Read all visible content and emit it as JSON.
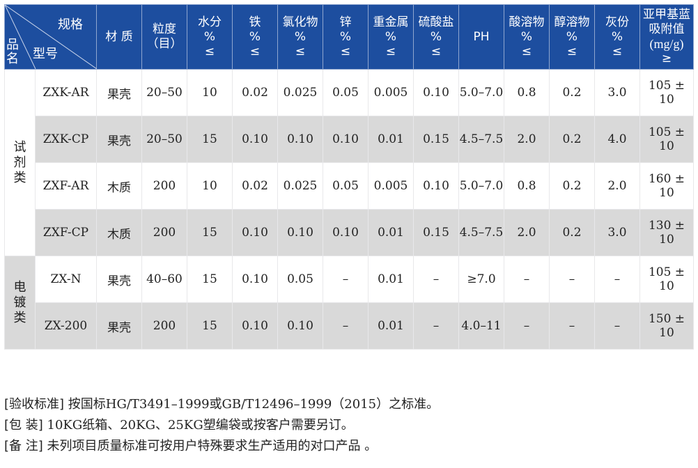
{
  "header": {
    "corner": {
      "spec": "规格",
      "model": "型号",
      "name": "品名"
    },
    "columns": [
      {
        "l1": "材 质",
        "l2": "",
        "l3": ""
      },
      {
        "l1": "粒度",
        "l2": "（目）",
        "l3": ""
      },
      {
        "l1": "水分",
        "l2": "%",
        "l3": "≤"
      },
      {
        "l1": "铁",
        "l2": "%",
        "l3": "≤"
      },
      {
        "l1": "氯化物",
        "l2": "%",
        "l3": "≤"
      },
      {
        "l1": "锌",
        "l2": "%",
        "l3": "≤"
      },
      {
        "l1": "重金属",
        "l2": "%",
        "l3": "≤"
      },
      {
        "l1": "硫酸盐",
        "l2": "%",
        "l3": "≤"
      },
      {
        "l1": "PH",
        "l2": "",
        "l3": ""
      },
      {
        "l1": "酸溶物",
        "l2": "%",
        "l3": "≤"
      },
      {
        "l1": "醇溶物",
        "l2": "%",
        "l3": "≤"
      },
      {
        "l1": "灰份",
        "l2": "%",
        "l3": "≤"
      },
      {
        "l1": "亚甲基蓝",
        "l2": "吸附值",
        "l3": "(mg/g)",
        "l4": "≥"
      }
    ]
  },
  "categories": [
    "试剂类",
    "电镀类"
  ],
  "rows": [
    [
      "ZXK-AR",
      "果壳",
      "20–50",
      "10",
      "0.02",
      "0.025",
      "0.05",
      "0.005",
      "0.10",
      "5.0–7.0",
      "0.8",
      "0.2",
      "3.0",
      "105 ± 10"
    ],
    [
      "ZXK-CP",
      "果壳",
      "20–50",
      "15",
      "0.10",
      "0.10",
      "0.10",
      "0.01",
      "0.15",
      "4.5–7.5",
      "2.0",
      "0.2",
      "4.0",
      "105 ± 10"
    ],
    [
      "ZXF-AR",
      "木质",
      "200",
      "10",
      "0.02",
      "0.025",
      "0.05",
      "0.005",
      "0.10",
      "5.0–7.0",
      "0.8",
      "0.2",
      "2.0",
      "160 ± 10"
    ],
    [
      "ZXF-CP",
      "木质",
      "200",
      "15",
      "0.10",
      "0.10",
      "0.10",
      "0.01",
      "0.15",
      "4.5–7.5",
      "2.0",
      "0.2",
      "3.0",
      "130 ± 10"
    ],
    [
      "ZX-N",
      "果壳",
      "40–60",
      "15",
      "0.10",
      "0.05",
      "–",
      "0.01",
      "–",
      "≥7.0",
      "–",
      "–",
      "–",
      "105 ± 10"
    ],
    [
      "ZX-200",
      "果壳",
      "200",
      "15",
      "0.10",
      "0.10",
      "–",
      "0.01",
      "–",
      "4.0–11",
      "–",
      "–",
      "–",
      "150 ± 10"
    ]
  ],
  "notes": [
    {
      "key": "[验收标准]",
      "text": " 按国标HG/T3491–1999或GB/T12496–1999（2015）之标准。"
    },
    {
      "key": "[包 装]",
      "text": " 10KG纸箱、20KG、25KG塑编袋或按客户需要另订。"
    },
    {
      "key": "[备 注]",
      "text": " 未列项目质量标准可按用户特殊要求生产适用的对口产品 。"
    }
  ],
  "colors": {
    "header": "#1d4e9f",
    "stripe": "#d9d9d9"
  }
}
